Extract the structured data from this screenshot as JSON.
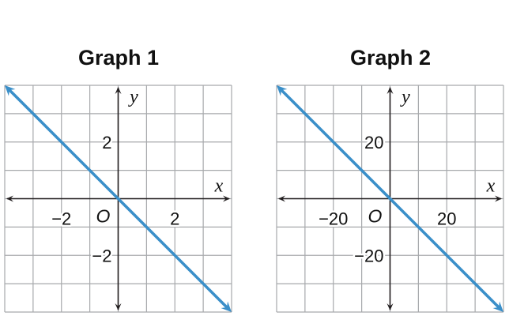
{
  "chart_data": [
    {
      "type": "line",
      "title": "Graph 1",
      "xlabel": "x",
      "ylabel": "y",
      "origin_label": "O",
      "xlim": [
        -4,
        4
      ],
      "ylim": [
        -4,
        4
      ],
      "grid": true,
      "grid_step": 1,
      "x_ticks": [
        {
          "value": -2,
          "label": "−2"
        },
        {
          "value": 2,
          "label": "2"
        }
      ],
      "y_ticks": [
        {
          "value": 2,
          "label": "2"
        },
        {
          "value": -2,
          "label": "−2"
        }
      ],
      "series": [
        {
          "points": [
            [
              -4,
              4
            ],
            [
              4,
              -4
            ]
          ],
          "arrows": "both"
        }
      ],
      "color": "#3a8fc9"
    },
    {
      "type": "line",
      "title": "Graph 2",
      "xlabel": "x",
      "ylabel": "y",
      "origin_label": "O",
      "xlim": [
        -40,
        40
      ],
      "ylim": [
        -40,
        40
      ],
      "grid": true,
      "grid_step": 10,
      "x_ticks": [
        {
          "value": -20,
          "label": "−20"
        },
        {
          "value": 20,
          "label": "20"
        }
      ],
      "y_ticks": [
        {
          "value": 20,
          "label": "20"
        },
        {
          "value": -20,
          "label": "−20"
        }
      ],
      "series": [
        {
          "points": [
            [
              -40,
              40
            ],
            [
              40,
              -40
            ]
          ],
          "arrows": "both"
        }
      ],
      "color": "#3a8fc9"
    }
  ]
}
